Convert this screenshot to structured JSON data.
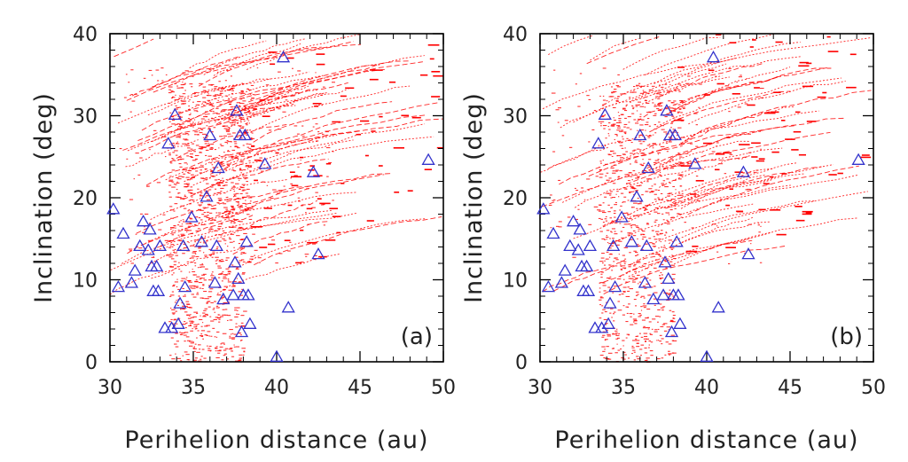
{
  "chart_data": [
    {
      "type": "scatter",
      "panel_label": "(a)",
      "xlabel": "Perihelion distance (au)",
      "ylabel": "Inclination (deg)",
      "xlim": [
        30,
        50
      ],
      "ylim": [
        0,
        40
      ],
      "x_ticks": [
        30,
        35,
        40,
        45,
        50
      ],
      "y_ticks": [
        0,
        10,
        20,
        30,
        40
      ],
      "colors": {
        "simulated": "#ff0000",
        "observed": "#3333cc"
      },
      "observed_markers": "open triangles",
      "series": [
        {
          "values": [
            [
              30.2,
              18.5
            ],
            [
              30.5,
              9
            ],
            [
              30.8,
              15.5
            ],
            [
              31.3,
              9.5
            ],
            [
              31.5,
              11
            ],
            [
              31.8,
              14
            ],
            [
              32,
              17
            ],
            [
              32.3,
              13.5
            ],
            [
              32.4,
              16
            ],
            [
              32.5,
              11.5
            ],
            [
              32.6,
              8.5
            ],
            [
              32.8,
              11.5
            ],
            [
              32.9,
              8.5
            ],
            [
              33,
              14
            ],
            [
              33.3,
              4
            ],
            [
              33.5,
              26.5
            ],
            [
              33.7,
              4
            ],
            [
              33.9,
              30
            ],
            [
              34.1,
              4.5
            ],
            [
              34.2,
              7
            ],
            [
              34.4,
              14
            ],
            [
              34.5,
              9
            ],
            [
              34.9,
              17.5
            ],
            [
              35.5,
              14.5
            ],
            [
              35.8,
              20
            ],
            [
              36,
              27.5
            ],
            [
              36.3,
              9.5
            ],
            [
              36.4,
              14
            ],
            [
              36.5,
              23.5
            ],
            [
              36.8,
              7.5
            ],
            [
              37.4,
              8
            ],
            [
              37.5,
              12
            ],
            [
              37.6,
              30.5
            ],
            [
              37.7,
              10
            ],
            [
              37.8,
              27.5
            ],
            [
              37.9,
              3.5
            ],
            [
              38,
              8
            ],
            [
              38.1,
              27.5
            ],
            [
              38.2,
              14.5
            ],
            [
              38.3,
              8
            ],
            [
              38.4,
              4.5
            ],
            [
              39.3,
              24
            ],
            [
              40,
              0.5
            ],
            [
              40.4,
              37
            ],
            [
              40.7,
              6.5
            ],
            [
              42.2,
              23
            ],
            [
              42.5,
              13
            ],
            [
              49.1,
              24.5
            ]
          ]
        }
      ]
    },
    {
      "type": "scatter",
      "panel_label": "(b)",
      "xlabel": "Perihelion distance (au)",
      "ylabel": "Inclination (deg)",
      "xlim": [
        30,
        50
      ],
      "ylim": [
        0,
        40
      ],
      "x_ticks": [
        30,
        35,
        40,
        45,
        50
      ],
      "y_ticks": [
        0,
        10,
        20,
        30,
        40
      ],
      "colors": {
        "simulated": "#ff0000",
        "observed": "#3333cc"
      },
      "observed_markers": "open triangles",
      "series": [
        {
          "values": [
            [
              30.2,
              18.5
            ],
            [
              30.5,
              9
            ],
            [
              30.8,
              15.5
            ],
            [
              31.3,
              9.5
            ],
            [
              31.5,
              11
            ],
            [
              31.8,
              14
            ],
            [
              32,
              17
            ],
            [
              32.3,
              13.5
            ],
            [
              32.4,
              16
            ],
            [
              32.5,
              11.5
            ],
            [
              32.6,
              8.5
            ],
            [
              32.8,
              11.5
            ],
            [
              32.9,
              8.5
            ],
            [
              33,
              14
            ],
            [
              33.3,
              4
            ],
            [
              33.5,
              26.5
            ],
            [
              33.7,
              4
            ],
            [
              33.9,
              30
            ],
            [
              34.1,
              4.5
            ],
            [
              34.2,
              7
            ],
            [
              34.4,
              14
            ],
            [
              34.5,
              9
            ],
            [
              34.9,
              17.5
            ],
            [
              35.5,
              14.5
            ],
            [
              35.8,
              20
            ],
            [
              36,
              27.5
            ],
            [
              36.3,
              9.5
            ],
            [
              36.4,
              14
            ],
            [
              36.5,
              23.5
            ],
            [
              36.8,
              7.5
            ],
            [
              37.4,
              8
            ],
            [
              37.5,
              12
            ],
            [
              37.6,
              30.5
            ],
            [
              37.7,
              10
            ],
            [
              37.8,
              27.5
            ],
            [
              37.9,
              3.5
            ],
            [
              38,
              8
            ],
            [
              38.1,
              27.5
            ],
            [
              38.2,
              14.5
            ],
            [
              38.3,
              8
            ],
            [
              38.4,
              4.5
            ],
            [
              39.3,
              24
            ],
            [
              40,
              0.5
            ],
            [
              40.4,
              37
            ],
            [
              40.7,
              6.5
            ],
            [
              42.2,
              23
            ],
            [
              42.5,
              13
            ],
            [
              49.1,
              24.5
            ]
          ]
        }
      ]
    }
  ]
}
